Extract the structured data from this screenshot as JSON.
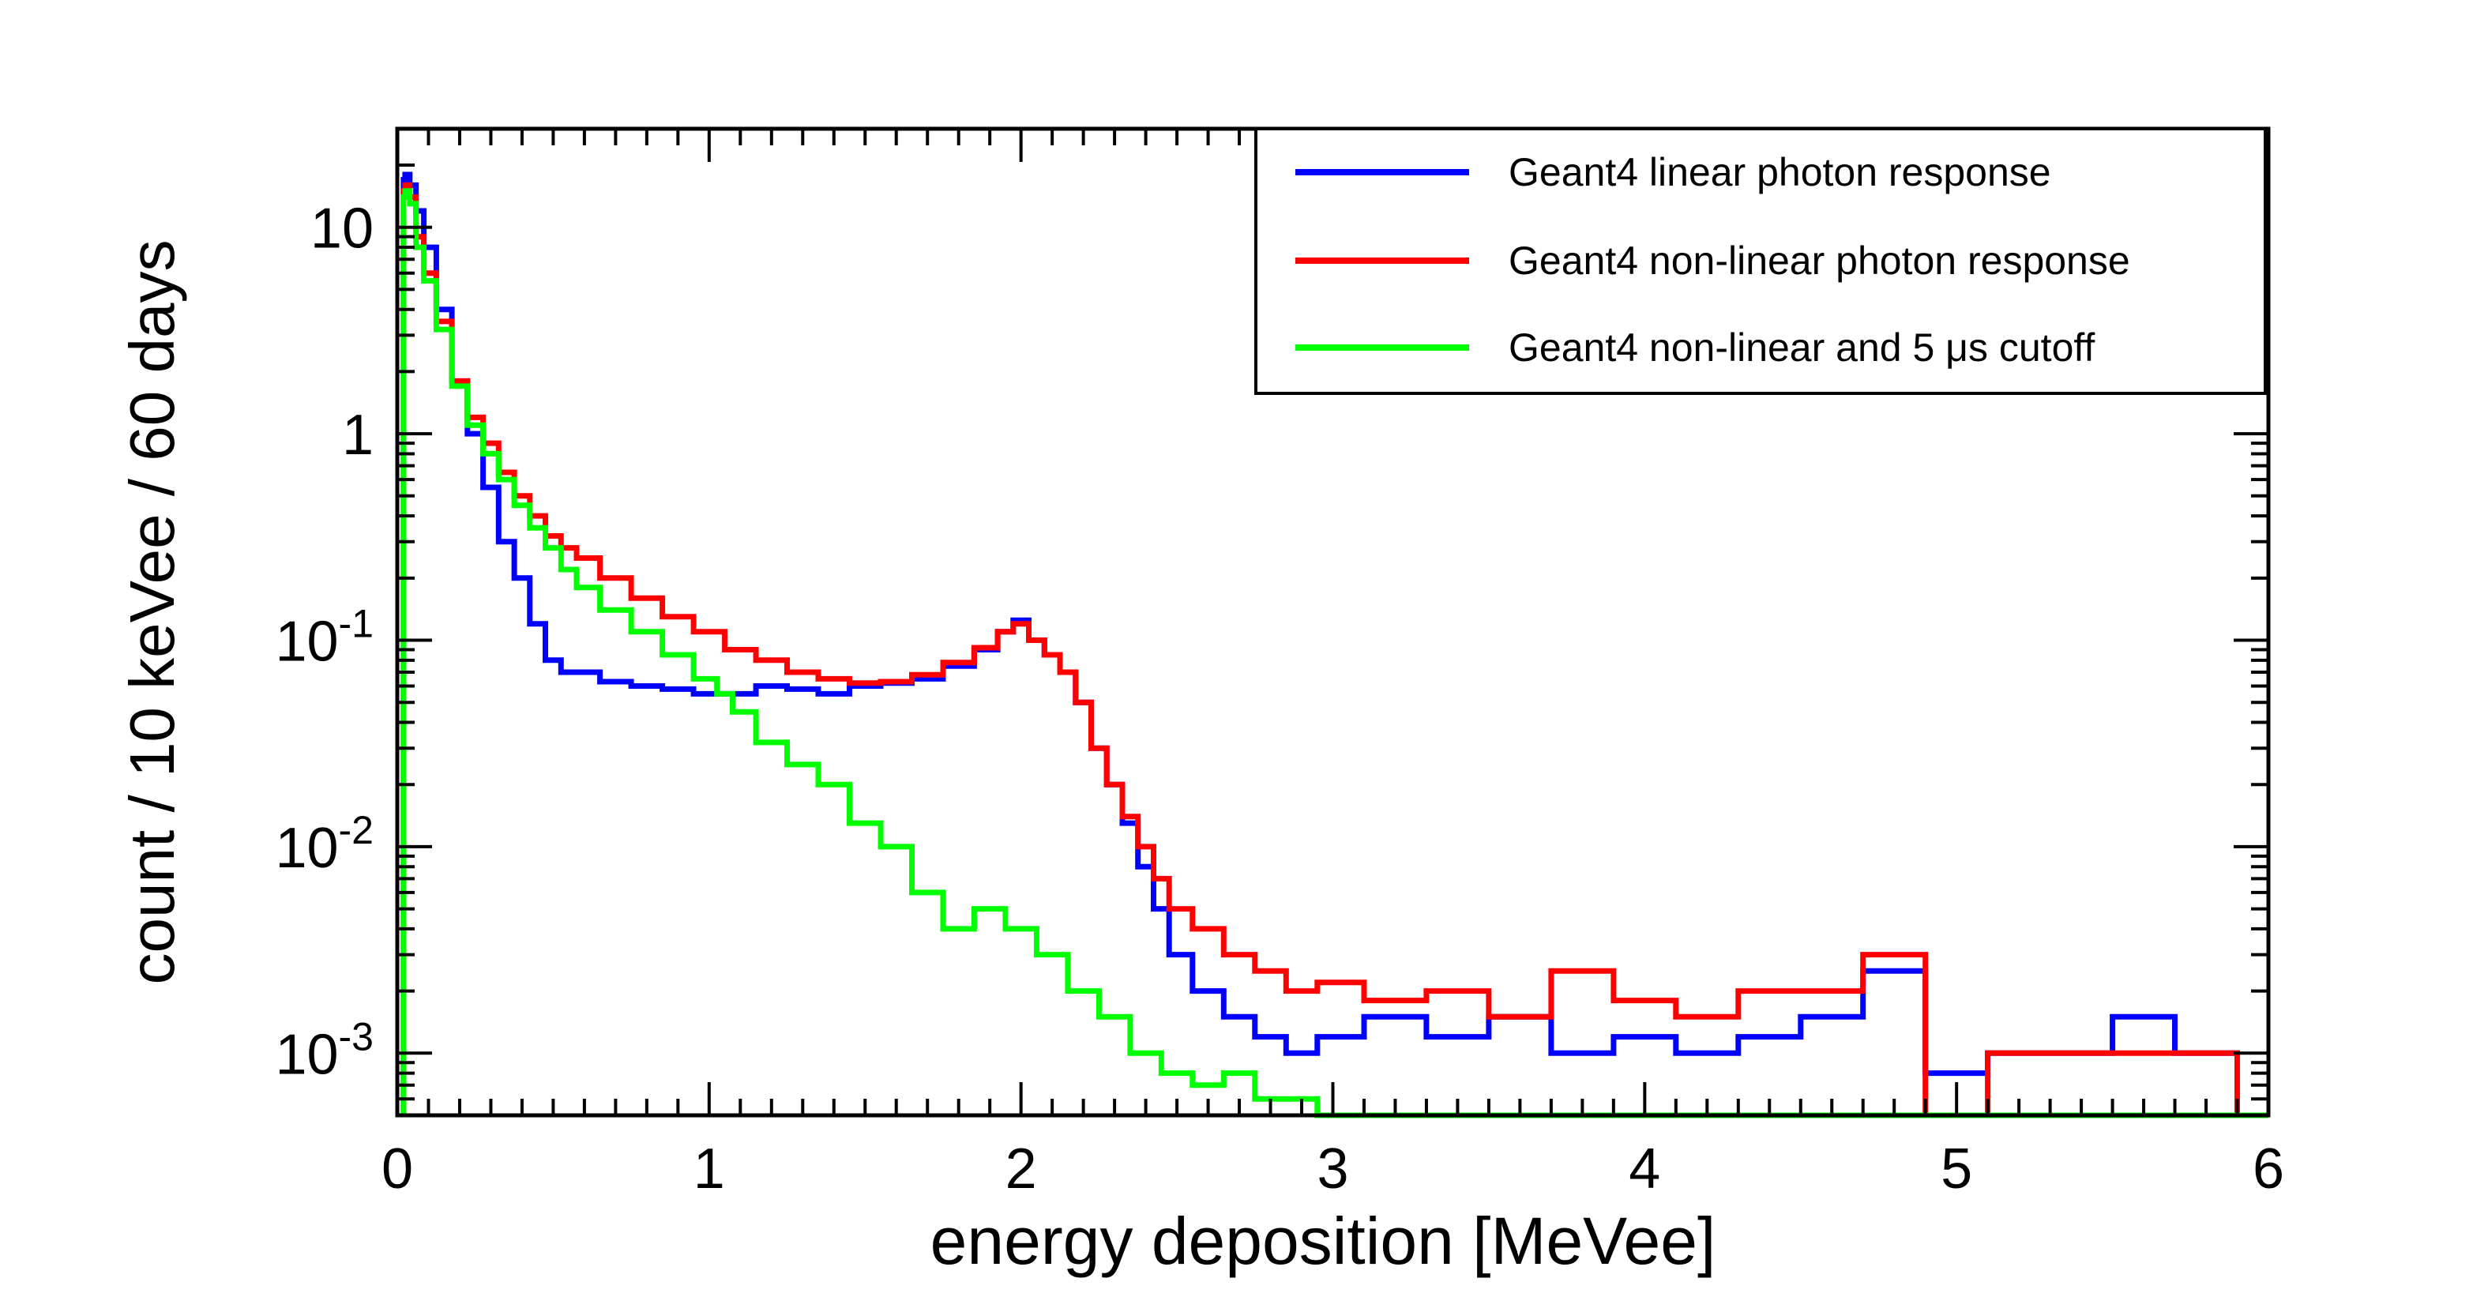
{
  "chart_data": {
    "type": "line",
    "xlabel": "energy deposition [MeVee]",
    "ylabel": "count / 10 keVee / 60 days",
    "x_range": [
      0,
      6
    ],
    "y_range": [
      0.0005,
      30
    ],
    "y_scale": "log",
    "grid": false,
    "legend_position": "top-right",
    "x_ticks": [
      {
        "value": 0,
        "label": "0"
      },
      {
        "value": 1,
        "label": "1"
      },
      {
        "value": 2,
        "label": "2"
      },
      {
        "value": 3,
        "label": "3"
      },
      {
        "value": 4,
        "label": "4"
      },
      {
        "value": 5,
        "label": "5"
      },
      {
        "value": 6,
        "label": "6"
      }
    ],
    "y_ticks": [
      {
        "value": 10,
        "base": "10",
        "exp": ""
      },
      {
        "value": 1,
        "base": "1",
        "exp": ""
      },
      {
        "value": 0.1,
        "base": "10",
        "exp": "-1"
      },
      {
        "value": 0.01,
        "base": "10",
        "exp": "-2"
      },
      {
        "value": 0.001,
        "base": "10",
        "exp": "-3"
      }
    ],
    "series": [
      {
        "name": "Geant4 linear photon response",
        "color": "#0000ff",
        "x": [
          0.02,
          0.03,
          0.05,
          0.07,
          0.1,
          0.15,
          0.2,
          0.25,
          0.3,
          0.35,
          0.4,
          0.45,
          0.5,
          0.55,
          0.6,
          0.7,
          0.8,
          0.9,
          1.0,
          1.1,
          1.2,
          1.3,
          1.4,
          1.5,
          1.6,
          1.7,
          1.8,
          1.9,
          1.95,
          2.0,
          2.05,
          2.1,
          2.15,
          2.2,
          2.25,
          2.3,
          2.35,
          2.4,
          2.45,
          2.5,
          2.6,
          2.7,
          2.8,
          2.9,
          3.0,
          3.2,
          3.4,
          3.6,
          3.8,
          4.0,
          4.2,
          4.4,
          4.6,
          4.8,
          5.0,
          5.2,
          5.4,
          5.6,
          5.8,
          6.0
        ],
        "y": [
          17,
          18,
          16,
          12,
          8,
          4,
          1.8,
          1.0,
          0.55,
          0.3,
          0.2,
          0.12,
          0.08,
          0.07,
          0.07,
          0.063,
          0.06,
          0.058,
          0.055,
          0.055,
          0.06,
          0.058,
          0.055,
          0.06,
          0.062,
          0.065,
          0.075,
          0.09,
          0.11,
          0.125,
          0.1,
          0.085,
          0.07,
          0.05,
          0.03,
          0.02,
          0.013,
          0.008,
          0.005,
          0.003,
          0.002,
          0.0015,
          0.0012,
          0.001,
          0.0012,
          0.0015,
          0.0012,
          0.0015,
          0.001,
          0.0012,
          0.001,
          0.0012,
          0.0015,
          0.0025,
          0.0008,
          0.001,
          0.001,
          0.0015,
          0.001,
          0.0005
        ]
      },
      {
        "name": "Geant4 non-linear photon response",
        "color": "#ff0000",
        "x": [
          0.02,
          0.03,
          0.05,
          0.07,
          0.1,
          0.15,
          0.2,
          0.25,
          0.3,
          0.35,
          0.4,
          0.45,
          0.5,
          0.55,
          0.6,
          0.7,
          0.8,
          0.9,
          1.0,
          1.1,
          1.2,
          1.3,
          1.4,
          1.5,
          1.6,
          1.7,
          1.8,
          1.9,
          1.95,
          2.0,
          2.05,
          2.1,
          2.15,
          2.2,
          2.25,
          2.3,
          2.35,
          2.4,
          2.45,
          2.5,
          2.6,
          2.7,
          2.8,
          2.9,
          3.0,
          3.2,
          3.4,
          3.6,
          3.8,
          4.0,
          4.2,
          4.4,
          4.6,
          4.8,
          5.0,
          5.2,
          5.4,
          5.6,
          5.8,
          6.0
        ],
        "y": [
          15,
          16,
          14,
          9,
          6,
          3.5,
          1.8,
          1.2,
          0.9,
          0.65,
          0.5,
          0.4,
          0.32,
          0.28,
          0.25,
          0.2,
          0.16,
          0.13,
          0.11,
          0.09,
          0.08,
          0.07,
          0.065,
          0.062,
          0.063,
          0.068,
          0.078,
          0.092,
          0.11,
          0.12,
          0.1,
          0.085,
          0.07,
          0.05,
          0.03,
          0.02,
          0.014,
          0.01,
          0.007,
          0.005,
          0.004,
          0.003,
          0.0025,
          0.002,
          0.0022,
          0.0018,
          0.002,
          0.0015,
          0.0025,
          0.0018,
          0.0015,
          0.002,
          0.002,
          0.003,
          0.0005,
          0.001,
          0.001,
          0.001,
          0.001,
          0.0005
        ]
      },
      {
        "name": "Geant4 non-linear and 5 μs cutoff",
        "color": "#00ff00",
        "x": [
          0.02,
          0.03,
          0.05,
          0.07,
          0.1,
          0.15,
          0.2,
          0.25,
          0.3,
          0.35,
          0.4,
          0.45,
          0.5,
          0.55,
          0.6,
          0.7,
          0.8,
          0.9,
          1.0,
          1.05,
          1.1,
          1.2,
          1.3,
          1.4,
          1.5,
          1.6,
          1.7,
          1.8,
          1.9,
          2.0,
          2.1,
          2.2,
          2.3,
          2.4,
          2.5,
          2.6,
          2.7,
          2.8,
          2.9,
          3.0,
          3.2,
          3.4,
          3.6,
          3.8,
          4.0,
          4.5,
          5.0,
          5.5,
          6.0
        ],
        "y": [
          14,
          15,
          13,
          8,
          5.5,
          3.2,
          1.7,
          1.1,
          0.8,
          0.6,
          0.45,
          0.35,
          0.28,
          0.22,
          0.18,
          0.14,
          0.11,
          0.085,
          0.065,
          0.055,
          0.045,
          0.032,
          0.025,
          0.02,
          0.013,
          0.01,
          0.006,
          0.004,
          0.005,
          0.004,
          0.003,
          0.002,
          0.0015,
          0.001,
          0.0008,
          0.0007,
          0.0008,
          0.0006,
          0.0006,
          0.0005,
          0.0005,
          0.0005,
          0.0005,
          0.0005,
          0.0005,
          0.0005,
          0.0005,
          0.0005,
          0.0005
        ]
      }
    ]
  }
}
